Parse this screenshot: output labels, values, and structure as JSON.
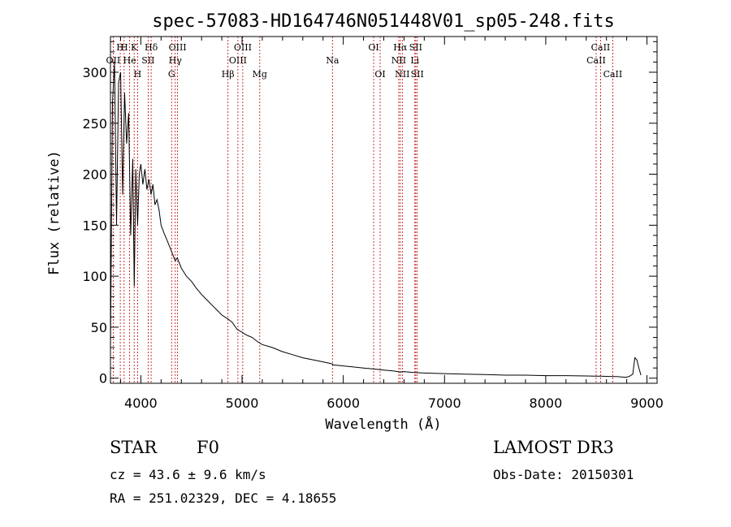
{
  "chart_data": {
    "type": "line",
    "title": "spec-57083-HD164746N051448V01_sp05-248.fits",
    "xlabel": "Wavelength (Å)",
    "ylabel": "Flux (relative)",
    "xlim": [
      3700,
      9100
    ],
    "ylim": [
      -5,
      335
    ],
    "x_ticks": [
      4000,
      5000,
      6000,
      7000,
      8000,
      9000
    ],
    "x_tick_labels": [
      "4000",
      "5000",
      "6000",
      "7000",
      "8000",
      "9000"
    ],
    "y_ticks": [
      0,
      50,
      100,
      150,
      200,
      250,
      300
    ],
    "y_tick_labels": [
      "0",
      "50",
      "100",
      "150",
      "200",
      "250",
      "300"
    ],
    "series": [
      {
        "name": "flux",
        "x": [
          3700,
          3720,
          3740,
          3760,
          3780,
          3800,
          3820,
          3840,
          3860,
          3880,
          3900,
          3920,
          3935,
          3950,
          3968,
          3985,
          4000,
          4020,
          4040,
          4060,
          4080,
          4101,
          4120,
          4140,
          4160,
          4180,
          4200,
          4230,
          4260,
          4300,
          4340,
          4360,
          4400,
          4450,
          4500,
          4550,
          4600,
          4650,
          4700,
          4750,
          4800,
          4861,
          4900,
          4950,
          5000,
          5050,
          5100,
          5150,
          5200,
          5300,
          5400,
          5500,
          5600,
          5700,
          5800,
          5890,
          5900,
          6000,
          6100,
          6200,
          6300,
          6400,
          6500,
          6563,
          6600,
          6700,
          6800,
          7000,
          7200,
          7400,
          7600,
          7800,
          8000,
          8200,
          8400,
          8498,
          8542,
          8600,
          8662,
          8700,
          8750,
          8780,
          8800,
          8830,
          8860,
          8880,
          8900,
          8920,
          8940
        ],
        "y": [
          30,
          270,
          310,
          150,
          290,
          300,
          180,
          280,
          230,
          260,
          140,
          215,
          90,
          205,
          150,
          200,
          210,
          190,
          205,
          185,
          195,
          180,
          190,
          170,
          175,
          165,
          150,
          142,
          135,
          125,
          115,
          118,
          108,
          100,
          95,
          88,
          82,
          77,
          72,
          67,
          62,
          58,
          55,
          48,
          45,
          42,
          40,
          36,
          33,
          30,
          26,
          23,
          20,
          18,
          16,
          14,
          13,
          12,
          11,
          10,
          9,
          8,
          7,
          6,
          6.5,
          5.5,
          5,
          4.5,
          4,
          3.5,
          3,
          3,
          2.5,
          2.5,
          2.2,
          2,
          2,
          1.8,
          1.6,
          1.5,
          1.2,
          1,
          1,
          2,
          4,
          20,
          18,
          10,
          3
        ]
      }
    ],
    "line_markers": [
      {
        "wl": 3727,
        "label": "OII",
        "row": 2
      },
      {
        "wl": 3797,
        "label": "H",
        "row": 1
      },
      {
        "wl": 3835,
        "label": "H",
        "row": 1
      },
      {
        "wl": 3889,
        "label": "He",
        "row": 2
      },
      {
        "wl": 3934,
        "label": "K",
        "row": 1
      },
      {
        "wl": 3968,
        "label": "H",
        "row": 3
      },
      {
        "wl": 4072,
        "label": "SII",
        "row": 2
      },
      {
        "wl": 4102,
        "label": "Hδ",
        "row": 1
      },
      {
        "wl": 4304,
        "label": "G",
        "row": 3
      },
      {
        "wl": 4340,
        "label": "Hγ",
        "row": 2
      },
      {
        "wl": 4363,
        "label": "OIII",
        "row": 1
      },
      {
        "wl": 4861,
        "label": "Hβ",
        "row": 3
      },
      {
        "wl": 4959,
        "label": "OIII",
        "row": 2
      },
      {
        "wl": 5007,
        "label": "OIII",
        "row": 1
      },
      {
        "wl": 5175,
        "label": "Mg",
        "row": 3
      },
      {
        "wl": 5893,
        "label": "Na",
        "row": 2
      },
      {
        "wl": 6300,
        "label": "OI",
        "row": 1
      },
      {
        "wl": 6364,
        "label": "OI",
        "row": 3
      },
      {
        "wl": 6548,
        "label": "NII",
        "row": 2
      },
      {
        "wl": 6563,
        "label": "Hα",
        "row": 1
      },
      {
        "wl": 6583,
        "label": "NII",
        "row": 3
      },
      {
        "wl": 6707,
        "label": "Li",
        "row": 2
      },
      {
        "wl": 6716,
        "label": "SII",
        "row": 1
      },
      {
        "wl": 6731,
        "label": "SII",
        "row": 3
      },
      {
        "wl": 8498,
        "label": "CaII",
        "row": 2
      },
      {
        "wl": 8542,
        "label": "CaII",
        "row": 1
      },
      {
        "wl": 8662,
        "label": "CaII",
        "row": 3
      }
    ],
    "grid": false,
    "legend": "none"
  },
  "info": {
    "object_class": "STAR",
    "subclass": "F0",
    "survey": "LAMOST DR3",
    "cz": "cz = 43.6 ± 9.6 km/s",
    "obs_date": "Obs-Date: 20150301",
    "radec": "RA = 251.02329, DEC =   4.18655"
  },
  "colors": {
    "axes": "#000000",
    "spectrum": "#000000",
    "line_marker": "#c00000",
    "background": "#ffffff"
  }
}
